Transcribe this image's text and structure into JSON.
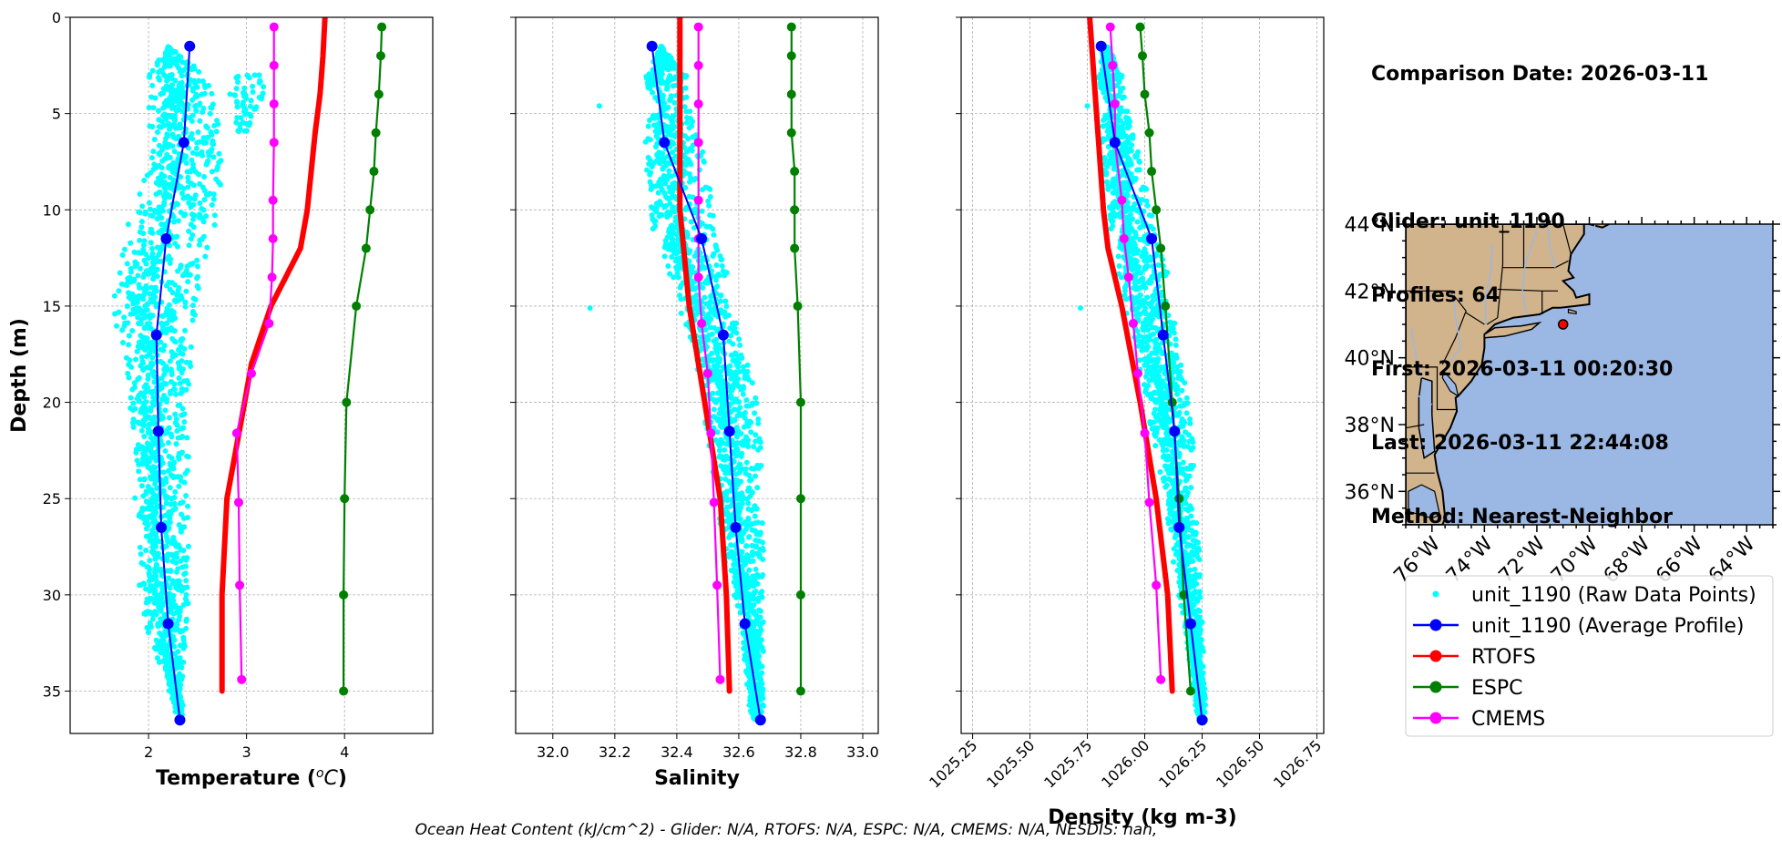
{
  "info": {
    "comparison_date": "Comparison Date: 2026-03-11",
    "glider": "Glider: unit_1190",
    "profiles": "Profiles: 64",
    "first": "First: 2026-03-11 00:20:30",
    "last": "Last: 2026-03-11 22:44:08",
    "method": "Method: Nearest-Neighbor"
  },
  "footer": "Ocean Heat Content (kJ/cm^2) - Glider: N/A,  RTOFS: N/A,  ESPC: N/A,  CMEMS: N/A,  NESDIS: nan,",
  "colors": {
    "raw": "#00ffff",
    "average": "#0000ff",
    "rtofs": "#ff0000",
    "espc": "#008000",
    "cmems": "#ff00ff",
    "land": "#d2b48c",
    "ocean": "#9bb7e3",
    "grid": "#b0b0b0"
  },
  "chart_data": [
    {
      "type": "line",
      "id": "temperature",
      "xlabel": "Temperature (°C)",
      "ylabel": "Depth (m)",
      "xlim": [
        1.2,
        4.9
      ],
      "ylim": [
        37.2,
        0
      ],
      "xticks": [
        2,
        3,
        4
      ],
      "yticks": [
        0,
        5,
        10,
        15,
        20,
        25,
        30,
        35
      ],
      "grid": true,
      "raw_envelope": {
        "depth": [
          1.5,
          3,
          5,
          8,
          10,
          12,
          14,
          16,
          18,
          20,
          22,
          25,
          28,
          31,
          34,
          36.5
        ],
        "min": [
          2.2,
          2.0,
          2.0,
          2.0,
          1.8,
          1.75,
          1.65,
          1.65,
          1.75,
          1.8,
          1.85,
          1.85,
          1.9,
          1.9,
          2.15,
          2.3
        ],
        "max": [
          2.2,
          2.6,
          2.7,
          2.75,
          2.7,
          2.6,
          2.55,
          2.45,
          2.45,
          2.4,
          2.4,
          2.4,
          2.4,
          2.4,
          2.35,
          2.35
        ]
      },
      "raw_extra": [
        {
          "depth": [
            3,
            4,
            5,
            6
          ],
          "min": [
            2.9,
            2.8,
            2.8,
            2.9
          ],
          "max": [
            3.2,
            3.2,
            3.1,
            3.0
          ]
        }
      ],
      "series": [
        {
          "name": "unit_1190 (Average Profile)",
          "color": "#0000ff",
          "width": 2,
          "marker": 6,
          "depth": [
            1.5,
            6.5,
            11.5,
            16.5,
            21.5,
            26.5,
            31.5,
            36.5
          ],
          "values": [
            2.42,
            2.36,
            2.18,
            2.08,
            2.1,
            2.13,
            2.2,
            2.32
          ]
        },
        {
          "name": "RTOFS",
          "color": "#ff0000",
          "width": 6,
          "marker": 0,
          "depth": [
            0,
            2,
            4,
            6,
            8,
            10,
            12,
            15,
            18,
            20,
            25,
            30,
            35
          ],
          "values": [
            3.8,
            3.78,
            3.75,
            3.7,
            3.66,
            3.62,
            3.55,
            3.25,
            3.05,
            2.98,
            2.8,
            2.75,
            2.75
          ]
        },
        {
          "name": "ESPC",
          "color": "#008000",
          "width": 2.2,
          "marker": 5,
          "depth": [
            0.5,
            2,
            4,
            6,
            8,
            10,
            12,
            15,
            20,
            25,
            30,
            35
          ],
          "values": [
            4.38,
            4.37,
            4.35,
            4.32,
            4.3,
            4.26,
            4.22,
            4.12,
            4.02,
            4.0,
            3.99,
            3.99
          ]
        },
        {
          "name": "CMEMS",
          "color": "#ff00ff",
          "width": 2.2,
          "marker": 5,
          "depth": [
            0.5,
            2.5,
            4.5,
            6.5,
            9.5,
            11.5,
            13.5,
            15.9,
            18.5,
            21.6,
            25.2,
            29.5,
            34.4
          ],
          "values": [
            3.28,
            3.28,
            3.28,
            3.28,
            3.27,
            3.27,
            3.26,
            3.23,
            3.05,
            2.9,
            2.92,
            2.93,
            2.95
          ]
        }
      ]
    },
    {
      "type": "line",
      "id": "salinity",
      "xlabel": "Salinity",
      "ylabel": "",
      "xlim": [
        31.88,
        33.05
      ],
      "ylim": [
        37.2,
        0
      ],
      "xticks": [
        32.0,
        32.2,
        32.4,
        32.6,
        32.8,
        33.0
      ],
      "yticks": [
        0,
        5,
        10,
        15,
        20,
        25,
        30,
        35
      ],
      "grid": true,
      "raw_envelope": {
        "depth": [
          1.5,
          3,
          5,
          8,
          10,
          12,
          14,
          16,
          18,
          20,
          22,
          25,
          28,
          31,
          34,
          36.5
        ],
        "min": [
          32.35,
          32.3,
          32.29,
          32.3,
          32.31,
          32.33,
          32.4,
          32.42,
          32.46,
          32.48,
          32.5,
          32.52,
          32.55,
          32.6,
          32.62,
          32.64
        ],
        "max": [
          32.35,
          32.43,
          32.46,
          32.5,
          32.52,
          32.54,
          32.57,
          32.6,
          32.64,
          32.66,
          32.67,
          32.68,
          32.68,
          32.68,
          32.68,
          32.68
        ]
      },
      "raw_extra": [
        {
          "depth": [
            15.1
          ],
          "min": [
            32.12
          ],
          "max": [
            32.12
          ]
        },
        {
          "depth": [
            4.6
          ],
          "min": [
            32.15
          ],
          "max": [
            32.15
          ]
        }
      ],
      "series": [
        {
          "name": "unit_1190 (Average Profile)",
          "color": "#0000ff",
          "width": 2,
          "marker": 6,
          "depth": [
            1.5,
            6.5,
            11.5,
            16.5,
            21.5,
            26.5,
            31.5,
            36.5
          ],
          "values": [
            32.32,
            32.36,
            32.48,
            32.55,
            32.57,
            32.59,
            32.62,
            32.67
          ]
        },
        {
          "name": "RTOFS",
          "color": "#ff0000",
          "width": 6,
          "marker": 0,
          "depth": [
            0,
            5,
            10,
            15,
            20,
            25,
            30,
            35
          ],
          "values": [
            32.41,
            32.41,
            32.41,
            32.44,
            32.49,
            32.54,
            32.56,
            32.57
          ]
        },
        {
          "name": "ESPC",
          "color": "#008000",
          "width": 2.2,
          "marker": 5,
          "depth": [
            0.5,
            2,
            4,
            6,
            8,
            10,
            12,
            15,
            20,
            25,
            30,
            35
          ],
          "values": [
            32.77,
            32.77,
            32.77,
            32.77,
            32.78,
            32.78,
            32.78,
            32.79,
            32.8,
            32.8,
            32.8,
            32.8
          ]
        },
        {
          "name": "CMEMS",
          "color": "#ff00ff",
          "width": 2.2,
          "marker": 5,
          "depth": [
            0.5,
            2.5,
            4.5,
            6.5,
            9.5,
            11.5,
            13.5,
            15.9,
            18.5,
            21.6,
            25.2,
            29.5,
            34.4
          ],
          "values": [
            32.47,
            32.47,
            32.47,
            32.47,
            32.47,
            32.47,
            32.47,
            32.48,
            32.5,
            32.51,
            32.52,
            32.53,
            32.54
          ]
        }
      ]
    },
    {
      "type": "line",
      "id": "density",
      "xlabel": "Density (kg m-3)",
      "ylabel": "",
      "xlim": [
        1025.2,
        1026.78
      ],
      "ylim": [
        37.2,
        0
      ],
      "xticks": [
        1025.25,
        1025.5,
        1025.75,
        1026.0,
        1026.25,
        1026.5,
        1026.75
      ],
      "yticks": [
        0,
        5,
        10,
        15,
        20,
        25,
        30,
        35
      ],
      "grid": true,
      "raw_envelope": {
        "depth": [
          1.5,
          3,
          5,
          8,
          10,
          12,
          14,
          16,
          18,
          20,
          22,
          25,
          28,
          31,
          34,
          36.5
        ],
        "min": [
          1025.82,
          1025.8,
          1025.8,
          1025.82,
          1025.84,
          1025.86,
          1025.9,
          1025.93,
          1025.97,
          1026.0,
          1026.04,
          1026.08,
          1026.12,
          1026.16,
          1026.2,
          1026.23
        ],
        "max": [
          1025.84,
          1025.9,
          1025.94,
          1025.99,
          1026.03,
          1026.07,
          1026.11,
          1026.14,
          1026.17,
          1026.19,
          1026.21,
          1026.22,
          1026.24,
          1026.25,
          1026.26,
          1026.27
        ]
      },
      "raw_extra": [
        {
          "depth": [
            15.1
          ],
          "min": [
            1025.72
          ],
          "max": [
            1025.72
          ]
        },
        {
          "depth": [
            4.6
          ],
          "min": [
            1025.75
          ],
          "max": [
            1025.75
          ]
        }
      ],
      "series": [
        {
          "name": "unit_1190 (Average Profile)",
          "color": "#0000ff",
          "width": 2,
          "marker": 6,
          "depth": [
            1.5,
            6.5,
            11.5,
            16.5,
            21.5,
            26.5,
            31.5,
            36.5
          ],
          "values": [
            1025.81,
            1025.87,
            1026.03,
            1026.08,
            1026.13,
            1026.15,
            1026.2,
            1026.25
          ]
        },
        {
          "name": "RTOFS",
          "color": "#ff0000",
          "width": 6,
          "marker": 0,
          "depth": [
            0,
            5,
            10,
            12,
            15,
            20,
            25,
            30,
            35
          ],
          "values": [
            1025.76,
            1025.79,
            1025.82,
            1025.84,
            1025.9,
            1025.98,
            1026.05,
            1026.1,
            1026.12
          ]
        },
        {
          "name": "ESPC",
          "color": "#008000",
          "width": 2.2,
          "marker": 5,
          "depth": [
            0.5,
            2,
            4,
            6,
            8,
            10,
            12,
            15,
            20,
            25,
            30,
            35
          ],
          "values": [
            1025.98,
            1025.99,
            1026.0,
            1026.02,
            1026.03,
            1026.05,
            1026.07,
            1026.09,
            1026.12,
            1026.15,
            1026.17,
            1026.2
          ]
        },
        {
          "name": "CMEMS",
          "color": "#ff00ff",
          "width": 2.2,
          "marker": 5,
          "depth": [
            0.5,
            2.5,
            4.5,
            6.5,
            9.5,
            11.5,
            13.5,
            15.9,
            18.5,
            21.6,
            25.2,
            29.5,
            34.4
          ],
          "values": [
            1025.85,
            1025.86,
            1025.87,
            1025.87,
            1025.9,
            1025.91,
            1025.93,
            1025.95,
            1025.97,
            1026.0,
            1026.02,
            1026.05,
            1026.07
          ]
        }
      ]
    },
    {
      "type": "map",
      "id": "location-map",
      "lon_range": [
        -77,
        -63
      ],
      "lat_range": [
        35,
        44
      ],
      "lon_ticks": [
        "76°W",
        "74°W",
        "72°W",
        "70°W",
        "68°W",
        "66°W",
        "64°W"
      ],
      "lon_tick_values": [
        -76,
        -74,
        -72,
        -70,
        -68,
        -66,
        -64
      ],
      "lat_ticks": [
        "36°N",
        "38°N",
        "40°N",
        "42°N",
        "44°N"
      ],
      "lat_tick_values": [
        36,
        38,
        40,
        42,
        44
      ],
      "glider_position": {
        "lon": -71.0,
        "lat": 41.0
      }
    }
  ],
  "legend": [
    {
      "label": "unit_1190 (Raw Data Points)",
      "color": "#00ffff",
      "style": "dot"
    },
    {
      "label": "unit_1190 (Average Profile)",
      "color": "#0000ff",
      "style": "line-marker"
    },
    {
      "label": "RTOFS",
      "color": "#ff0000",
      "style": "line-marker"
    },
    {
      "label": "ESPC",
      "color": "#008000",
      "style": "line-marker"
    },
    {
      "label": "CMEMS",
      "color": "#ff00ff",
      "style": "line-marker"
    }
  ]
}
